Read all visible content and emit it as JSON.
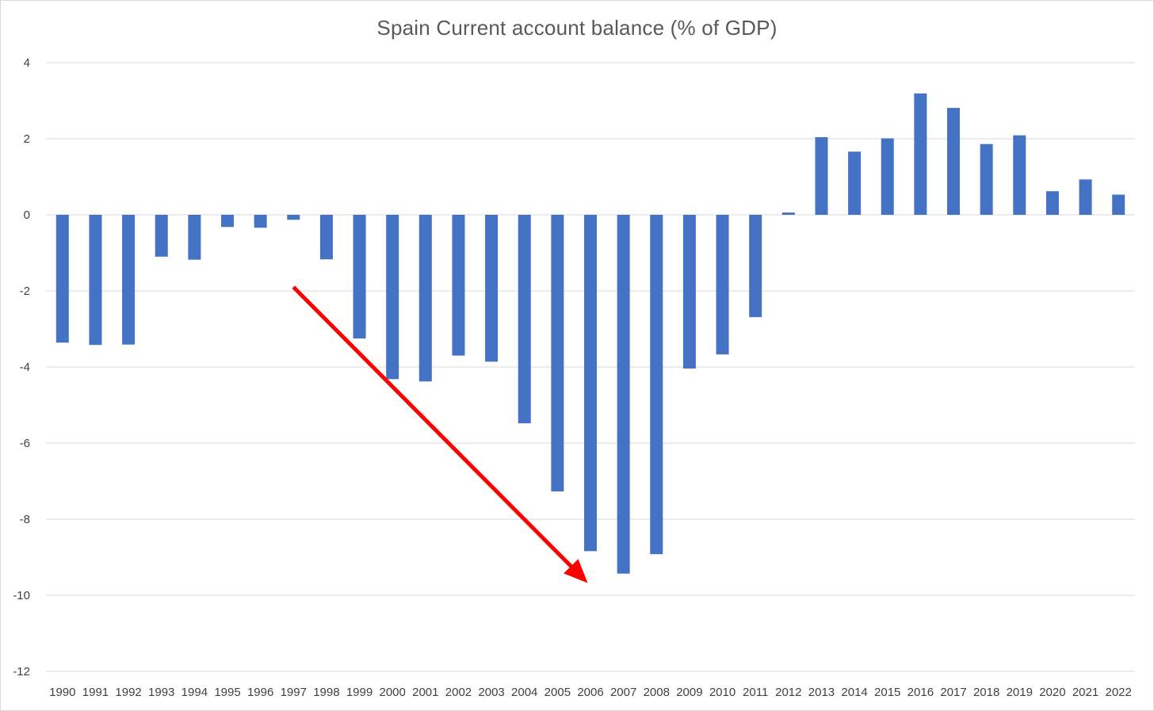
{
  "chart_data": {
    "type": "bar",
    "title": "Spain Current account balance (% of GDP)",
    "xlabel": "",
    "ylabel": "",
    "ylim": [
      -12,
      4
    ],
    "yticks": [
      4,
      2,
      0,
      -2,
      -4,
      -6,
      -8,
      -10,
      -12
    ],
    "grid": true,
    "legend": "none",
    "categories": [
      "1990",
      "1991",
      "1992",
      "1993",
      "1994",
      "1995",
      "1996",
      "1997",
      "1998",
      "1999",
      "2000",
      "2001",
      "2002",
      "2003",
      "2004",
      "2005",
      "2006",
      "2007",
      "2008",
      "2009",
      "2010",
      "2011",
      "2012",
      "2013",
      "2014",
      "2015",
      "2016",
      "2017",
      "2018",
      "2019",
      "2020",
      "2021",
      "2022"
    ],
    "values": [
      -3.36,
      -3.42,
      -3.41,
      -1.1,
      -1.18,
      -0.32,
      -0.34,
      -0.13,
      -1.17,
      -3.25,
      -4.32,
      -4.38,
      -3.7,
      -3.86,
      -5.48,
      -7.27,
      -8.84,
      -9.43,
      -8.92,
      -4.04,
      -3.67,
      -2.69,
      0.06,
      2.04,
      1.66,
      2.01,
      3.19,
      2.81,
      1.86,
      2.09,
      0.62,
      0.93,
      0.53
    ],
    "annotations": [
      {
        "type": "arrow",
        "color": "#ff0000",
        "from": {
          "x": "1997",
          "y": -1.9
        },
        "to": {
          "x": "2006",
          "y": -9.5
        }
      }
    ],
    "colors": {
      "bar": "#4472c4",
      "grid": "#d9d9d9",
      "text": "#404040",
      "title": "#595959"
    }
  }
}
